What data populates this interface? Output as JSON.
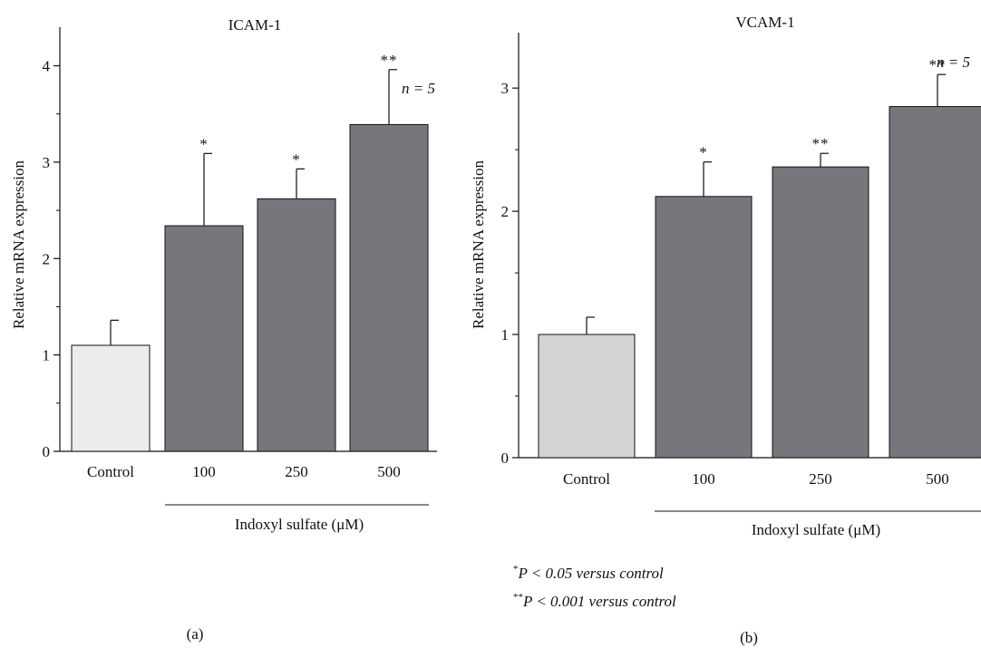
{
  "chart_data": [
    {
      "type": "bar",
      "panel": "(a)",
      "title": "ICAM-1",
      "ylabel": "Relative mRNA expression",
      "xgroup_label": "Indoxyl sulfate (μM)",
      "n_label": "n = 5",
      "categories": [
        "Control",
        "100",
        "250",
        "500"
      ],
      "values": [
        1.1,
        2.34,
        2.62,
        3.39
      ],
      "errors": [
        0.26,
        0.75,
        0.31,
        0.57
      ],
      "significance": [
        "",
        "*",
        "*",
        "**"
      ],
      "bar_colors": [
        "#ececee",
        "#76777c",
        "#76777c",
        "#76777c"
      ],
      "ylim": [
        0,
        4.4
      ],
      "yticks": [
        0,
        1,
        2,
        3,
        4
      ]
    },
    {
      "type": "bar",
      "panel": "(b)",
      "title": "VCAM-1",
      "ylabel": "Relative mRNA expression",
      "xgroup_label": "Indoxyl sulfate (μM)",
      "n_label": "n = 5",
      "categories": [
        "Control",
        "100",
        "250",
        "500"
      ],
      "values": [
        1.0,
        2.12,
        2.36,
        2.85
      ],
      "errors": [
        0.14,
        0.28,
        0.11,
        0.26
      ],
      "significance": [
        "",
        "*",
        "**",
        "**"
      ],
      "bar_colors": [
        "#d3d5d5",
        "#76777c",
        "#76777c",
        "#76777c"
      ],
      "ylim": [
        0,
        3.45
      ],
      "yticks": [
        0,
        1,
        2,
        3
      ]
    }
  ],
  "footnotes": [
    {
      "marker": "*",
      "text": "P < 0.05 versus control"
    },
    {
      "marker": "**",
      "text": "P < 0.001 versus control"
    }
  ]
}
